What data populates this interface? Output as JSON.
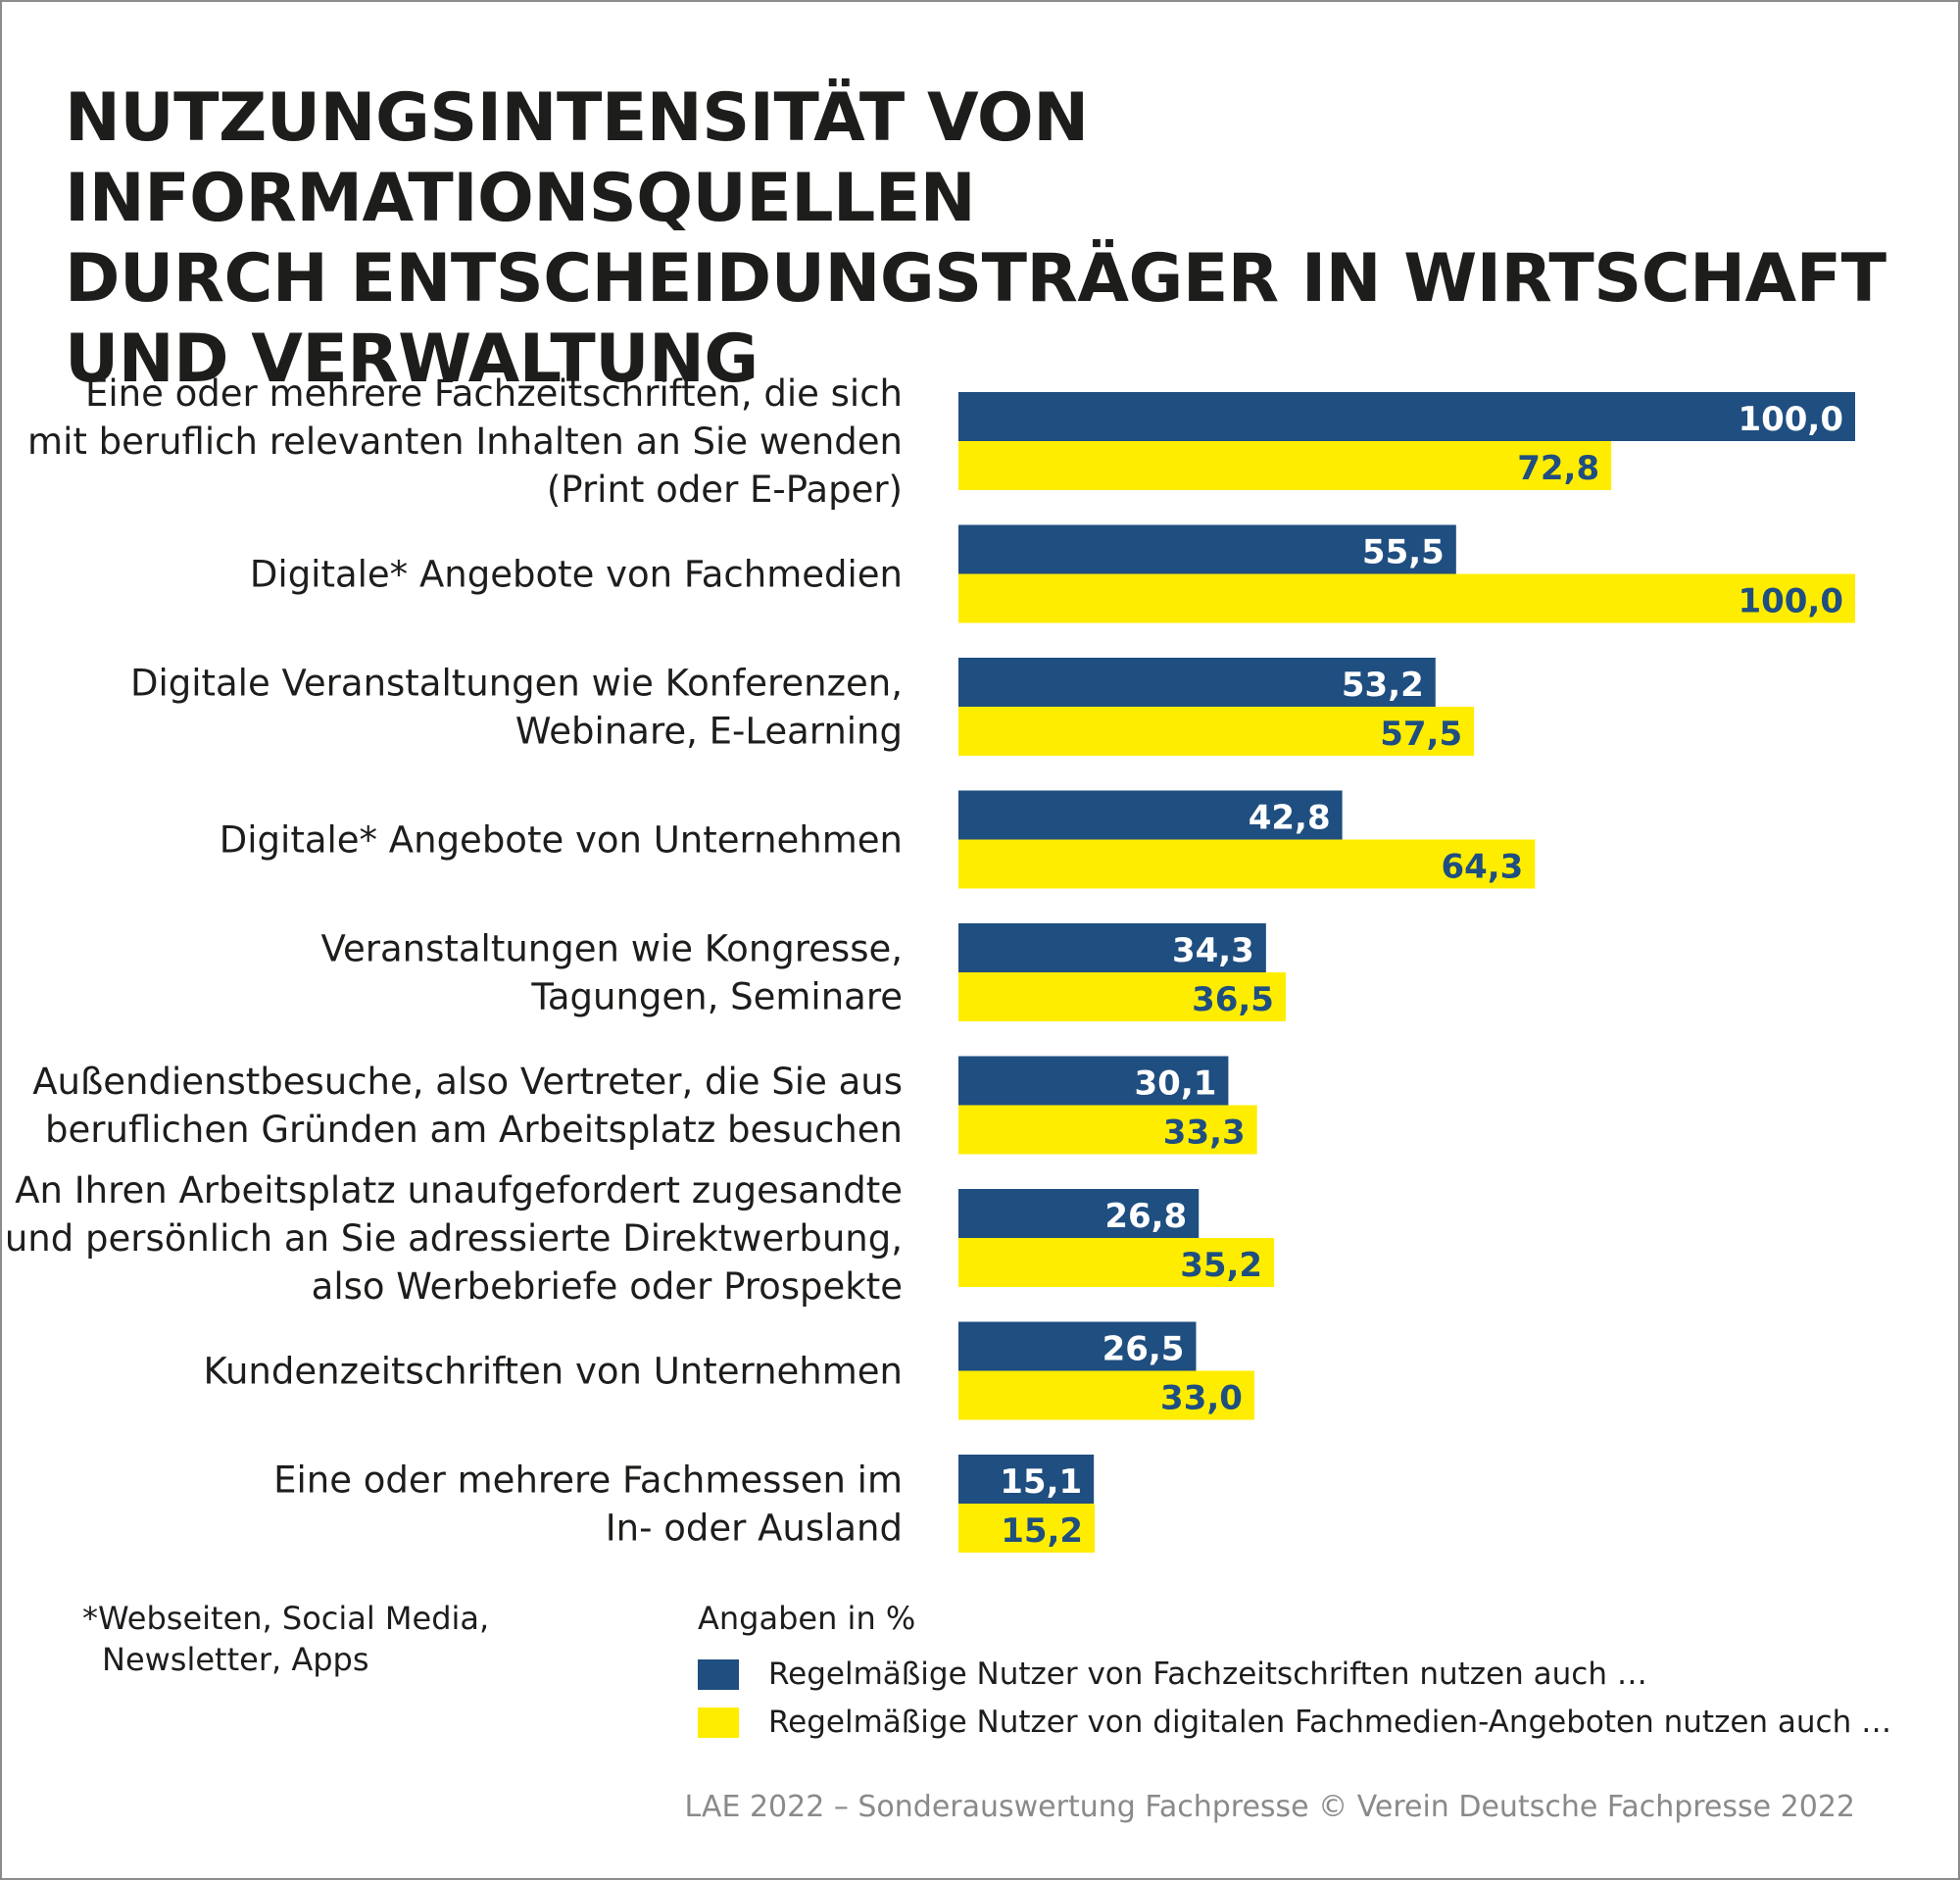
{
  "chart_data": {
    "type": "bar",
    "orientation": "horizontal",
    "title": [
      "NUTZUNGSINTENSITÄT VON INFORMATIONSQUELLEN",
      "DURCH ENTSCHEIDUNGSTRÄGER IN WIRTSCHAFT",
      "UND VERWALTUNG"
    ],
    "categories": [
      [
        "Eine oder mehrere Fachzeitschriften, die sich",
        "mit beruflich relevanten Inhalten an Sie wenden",
        "(Print oder E-Paper)"
      ],
      [
        "Digitale* Angebote von Fachmedien"
      ],
      [
        "Digitale Veranstaltungen wie Konferenzen,",
        "Webinare, E-Learning"
      ],
      [
        "Digitale* Angebote von Unternehmen"
      ],
      [
        "Veranstaltungen wie Kongresse,",
        "Tagungen, Seminare"
      ],
      [
        "Außendienstbesuche, also Vertreter, die Sie aus",
        "beruflichen Gründen am Arbeitsplatz besuchen"
      ],
      [
        "An Ihren Arbeitsplatz unaufgefordert zugesandte",
        "und persönlich an Sie adressierte Direktwerbung,",
        "also Werbebriefe oder Prospekte"
      ],
      [
        "Kundenzeitschriften von Unternehmen"
      ],
      [
        "Eine oder mehrere Fachmessen im",
        "In- oder Ausland"
      ]
    ],
    "series": [
      {
        "name": "Regelmäßige Nutzer von Fachzeitschriften nutzen auch …",
        "color": "#1f4e80",
        "label_color": "#ffffff",
        "values": [
          100.0,
          55.5,
          53.2,
          42.8,
          34.3,
          30.1,
          26.8,
          26.5,
          15.1
        ],
        "labels": [
          "100,0",
          "55,5",
          "53,2",
          "42,8",
          "34,3",
          "30,1",
          "26,8",
          "26,5",
          "15,1"
        ]
      },
      {
        "name": "Regelmäßige Nutzer von digitalen Fachmedien-Angeboten nutzen auch …",
        "color": "#ffed00",
        "label_color": "#1f4e80",
        "values": [
          72.8,
          100.0,
          57.5,
          64.3,
          36.5,
          33.3,
          35.2,
          33.0,
          15.2
        ],
        "labels": [
          "72,8",
          "100,0",
          "57,5",
          "64,3",
          "36,5",
          "33,3",
          "35,2",
          "33,0",
          "15,2"
        ]
      }
    ],
    "xlim": [
      0,
      100
    ],
    "xlabel": "",
    "ylabel": "",
    "grid": false,
    "legend": "bottom",
    "unit_note": "Angaben in %",
    "footnote": [
      "*Webseiten, Social Media,",
      "Newsletter, Apps"
    ],
    "source": "LAE 2022 – Sonderauswertung Fachpresse © Verein Deutsche Fachpresse 2022"
  }
}
